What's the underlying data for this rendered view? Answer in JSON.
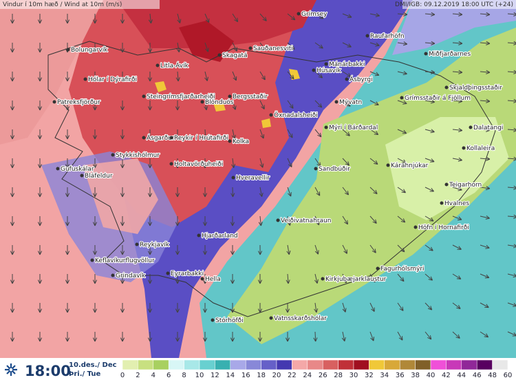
{
  "header": {
    "title": "Vindur í 10m hæð / Wind at 10m (m/s)",
    "source": "DMI/IGB: 09.12.2019 18:00 UTC (+24)"
  },
  "places": [
    "Grímsey",
    "Raufarhöfn",
    "Bolungarvík",
    "Skagatá",
    "Sauðanesviti",
    "Mánárbakki",
    "Miðfjarðarnes",
    "Litla-Ávík",
    "Húsavík",
    "Ásbyrgi",
    "Hólar í Dýrafirði",
    "Steingrímsfjarðarheiði",
    "Blönduós",
    "Bergsstaðir",
    "Patreksfjörður",
    "Mývatn",
    "Grímsstaðir á Fjöllum",
    "Skjaldþingsstaðir",
    "Öxnadalsheiði",
    "Mýri í Bárðardal",
    "Dalatangi",
    "Ásgarður",
    "Reykir í Hrútafirði",
    "Kolka",
    "Kollaleira",
    "Stykkishólmur",
    "Gufuskálar",
    "Holtavörðuheiði",
    "Sandbúðir",
    "Kárahnjúkar",
    "Bláfeldur",
    "Hveravellir",
    "Teigarhorn",
    "Hvalnes",
    "Veiðivatnahraun",
    "Höfn í Hornafirði",
    "Reykjavík",
    "Hjarðarland",
    "Keflavíkurflugvöllur",
    "Grindavík",
    "Fagurhólsmýri",
    "Eyrarbakki",
    "Hella",
    "Kirkjubæjarklaustur",
    "Stórhöfði",
    "Vatnsskarðshólar"
  ],
  "footer": {
    "time": "18:00",
    "date": "10.des./ Dec",
    "weekday": "Þri./ Tue"
  },
  "legend": {
    "labels": [
      0,
      2,
      4,
      6,
      8,
      10,
      12,
      14,
      16,
      18,
      20,
      22,
      24,
      26,
      28,
      30,
      32,
      34,
      36,
      38,
      40,
      42,
      44,
      46,
      48,
      60
    ],
    "colors": [
      "#e2efb0",
      "#c8e080",
      "#a8d060",
      "#d8f6f6",
      "#a8e8e8",
      "#68d0d0",
      "#38b0b0",
      "#a8a8e8",
      "#8888d8",
      "#6660c8",
      "#4438b0",
      "#f4a8a8",
      "#e88888",
      "#d86060",
      "#c03038",
      "#a01020",
      "#f0c838",
      "#d8a838",
      "#b08838",
      "#806028",
      "#f050d8",
      "#c838b8",
      "#902898",
      "#580060",
      "#e8e8e8"
    ]
  }
}
